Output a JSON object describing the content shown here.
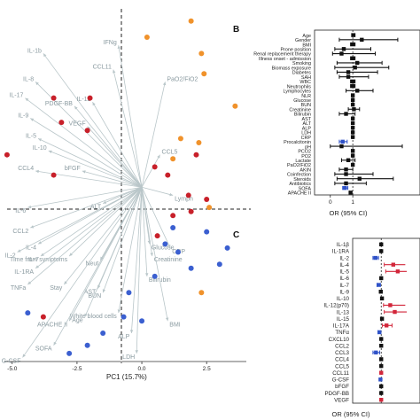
{
  "panel_letters": {
    "b": "B",
    "c": "C"
  },
  "chart_data": [
    {
      "type": "scatter",
      "subtype": "pca-biplot",
      "xlabel": "PC1 (15.7%)",
      "xticks": [
        "-5.0",
        "-2.5",
        "0.0",
        "2.5"
      ],
      "xtick_values": [
        -5.0,
        -2.5,
        0.0,
        2.5
      ],
      "xlim": [
        -5.3,
        4.1
      ],
      "ylim": [
        -4.3,
        4.4
      ],
      "colors": {
        "orange": "#f0922b",
        "red": "#c8202a",
        "blue": "#3b5fd0",
        "arrow": "#b9c6c9"
      },
      "points": [
        {
          "x": 0.2,
          "y": 3.7,
          "c": "orange"
        },
        {
          "x": 1.9,
          "y": 4.1,
          "c": "orange"
        },
        {
          "x": 2.3,
          "y": 3.3,
          "c": "orange"
        },
        {
          "x": 2.4,
          "y": 2.8,
          "c": "orange"
        },
        {
          "x": 3.6,
          "y": 2.0,
          "c": "orange"
        },
        {
          "x": 1.5,
          "y": 1.2,
          "c": "orange"
        },
        {
          "x": 2.2,
          "y": 1.1,
          "c": "orange"
        },
        {
          "x": 1.2,
          "y": 0.7,
          "c": "orange"
        },
        {
          "x": 2.6,
          "y": -0.5,
          "c": "orange"
        },
        {
          "x": 2.3,
          "y": -2.6,
          "c": "orange"
        },
        {
          "x": -3.4,
          "y": 2.2,
          "c": "red"
        },
        {
          "x": -2.0,
          "y": 2.2,
          "c": "red"
        },
        {
          "x": -3.1,
          "y": 1.6,
          "c": "red"
        },
        {
          "x": -2.1,
          "y": 1.4,
          "c": "red"
        },
        {
          "x": -5.2,
          "y": 0.8,
          "c": "red"
        },
        {
          "x": -3.4,
          "y": 0.3,
          "c": "red"
        },
        {
          "x": 2.1,
          "y": 0.8,
          "c": "red"
        },
        {
          "x": 0.5,
          "y": 0.5,
          "c": "red"
        },
        {
          "x": 1.0,
          "y": 0.3,
          "c": "red"
        },
        {
          "x": 1.8,
          "y": -0.2,
          "c": "red"
        },
        {
          "x": 2.5,
          "y": -0.3,
          "c": "red"
        },
        {
          "x": 1.9,
          "y": -0.6,
          "c": "red"
        },
        {
          "x": 1.2,
          "y": -0.7,
          "c": "red"
        },
        {
          "x": 0.6,
          "y": -1.2,
          "c": "red"
        },
        {
          "x": -3.8,
          "y": -3.2,
          "c": "red"
        },
        {
          "x": 1.2,
          "y": -1.0,
          "c": "blue"
        },
        {
          "x": 2.5,
          "y": -1.1,
          "c": "blue"
        },
        {
          "x": 1.4,
          "y": -1.6,
          "c": "blue"
        },
        {
          "x": 0.9,
          "y": -1.4,
          "c": "blue"
        },
        {
          "x": 3.0,
          "y": -1.9,
          "c": "blue"
        },
        {
          "x": 3.3,
          "y": -1.5,
          "c": "blue"
        },
        {
          "x": 1.9,
          "y": -2.0,
          "c": "blue"
        },
        {
          "x": -0.5,
          "y": -2.6,
          "c": "blue"
        },
        {
          "x": -0.7,
          "y": -3.2,
          "c": "blue"
        },
        {
          "x": -1.5,
          "y": -3.6,
          "c": "blue"
        },
        {
          "x": 0.5,
          "y": -2.2,
          "c": "blue"
        },
        {
          "x": 0.0,
          "y": -3.3,
          "c": "blue"
        },
        {
          "x": -4.4,
          "y": -3.1,
          "c": "blue"
        },
        {
          "x": -2.1,
          "y": -3.9,
          "c": "blue"
        },
        {
          "x": -2.8,
          "y": -4.1,
          "c": "blue"
        }
      ],
      "loadings": [
        {
          "label": "IFNg",
          "x": -0.9,
          "y": 3.5
        },
        {
          "label": "IL-1b",
          "x": -3.8,
          "y": 3.3
        },
        {
          "label": "CCL11",
          "x": -1.1,
          "y": 2.9
        },
        {
          "label": "IL-8",
          "x": -4.1,
          "y": 2.6
        },
        {
          "label": "PaO2/FiO2",
          "x": 0.9,
          "y": 2.6
        },
        {
          "label": "IL-17",
          "x": -4.5,
          "y": 2.2
        },
        {
          "label": "PDGF-BB",
          "x": -2.6,
          "y": 2.0
        },
        {
          "label": "IL-12",
          "x": -1.9,
          "y": 2.1
        },
        {
          "label": "VEGF",
          "x": -2.1,
          "y": 1.5
        },
        {
          "label": "IL-9",
          "x": -4.3,
          "y": 1.7
        },
        {
          "label": "IL-5",
          "x": -4.0,
          "y": 1.2
        },
        {
          "label": "IL-10",
          "x": -3.6,
          "y": 0.9
        },
        {
          "label": "CCL4",
          "x": -4.1,
          "y": 0.4
        },
        {
          "label": "bFGF",
          "x": -2.3,
          "y": 0.4
        },
        {
          "label": "CCL5",
          "x": 0.7,
          "y": 0.8
        },
        {
          "label": "Lymph",
          "x": 1.2,
          "y": -0.2
        },
        {
          "label": "IL-6",
          "x": -4.4,
          "y": -0.5
        },
        {
          "label": "ALT",
          "x": -1.5,
          "y": -0.4
        },
        {
          "label": "CCL2",
          "x": -4.3,
          "y": -1.0
        },
        {
          "label": "IL-4",
          "x": -4.0,
          "y": -1.4
        },
        {
          "label": "IL-2",
          "x": -4.8,
          "y": -1.6
        },
        {
          "label": "IL-7",
          "x": -3.9,
          "y": -1.7
        },
        {
          "label": "Time from symptoms",
          "x": -2.8,
          "y": -1.7
        },
        {
          "label": "IL-1RA",
          "x": -4.1,
          "y": -2.0
        },
        {
          "label": "Glucose",
          "x": 0.3,
          "y": -1.4
        },
        {
          "label": "CRP",
          "x": 1.1,
          "y": -1.5
        },
        {
          "label": "Creatinine",
          "x": 0.4,
          "y": -1.7
        },
        {
          "label": "TNFa",
          "x": -4.4,
          "y": -2.4
        },
        {
          "label": "Stay",
          "x": -3.0,
          "y": -2.4
        },
        {
          "label": "Neut",
          "x": -1.6,
          "y": -1.8
        },
        {
          "label": "Bilirubin",
          "x": 0.2,
          "y": -2.2
        },
        {
          "label": "AST",
          "x": -1.7,
          "y": -2.5
        },
        {
          "label": "BUN",
          "x": -1.5,
          "y": -2.6
        },
        {
          "label": "White blood cells",
          "x": -0.9,
          "y": -3.1
        },
        {
          "label": "Age",
          "x": -2.2,
          "y": -3.2
        },
        {
          "label": "APACHE II",
          "x": -2.8,
          "y": -3.3
        },
        {
          "label": "BMI",
          "x": 1.0,
          "y": -3.3
        },
        {
          "label": "ALP",
          "x": -0.4,
          "y": -3.6
        },
        {
          "label": "SOFA",
          "x": -3.4,
          "y": -3.9
        },
        {
          "label": "G-CSF",
          "x": -4.6,
          "y": -4.2
        },
        {
          "label": "LDH",
          "x": -0.2,
          "y": -4.1
        }
      ]
    },
    {
      "type": "forest",
      "panel": "B",
      "xlabel": "OR (95% CI)",
      "xticks": [
        "0",
        "1"
      ],
      "xtick_values": [
        0,
        1
      ],
      "xlim": [
        -0.7,
        3.2
      ],
      "reference": 1,
      "rows": [
        {
          "label": "Age",
          "or": 1.02,
          "lo": 0.95,
          "hi": 1.1,
          "c": "black"
        },
        {
          "label": "Gender",
          "or": 1.4,
          "lo": 0.4,
          "hi": 3.0,
          "c": "black"
        },
        {
          "label": "BMI",
          "or": 1.0,
          "lo": 0.9,
          "hi": 1.1,
          "c": "black"
        },
        {
          "label": "Prone position",
          "or": 0.6,
          "lo": 0.2,
          "hi": 1.8,
          "c": "black"
        },
        {
          "label": "Renal replacement therapy",
          "or": 0.5,
          "lo": 0.1,
          "hi": 2.0,
          "c": "black"
        },
        {
          "label": "Illness onset - admission",
          "or": 1.0,
          "lo": 0.9,
          "hi": 1.1,
          "c": "black"
        },
        {
          "label": "Smoking",
          "or": 1.2,
          "lo": 0.3,
          "hi": 2.3,
          "c": "black"
        },
        {
          "label": "Biomass exposure",
          "or": 1.1,
          "lo": 0.2,
          "hi": 2.6,
          "c": "black"
        },
        {
          "label": "Diabetes",
          "or": 0.8,
          "lo": 0.3,
          "hi": 2.1,
          "c": "black"
        },
        {
          "label": "SAH",
          "or": 0.8,
          "lo": 0.4,
          "hi": 1.7,
          "c": "black"
        },
        {
          "label": "WBC",
          "or": 1.0,
          "lo": 0.9,
          "hi": 1.1,
          "c": "black"
        },
        {
          "label": "Neutrophils",
          "or": 1.0,
          "lo": 0.9,
          "hi": 1.1,
          "c": "black"
        },
        {
          "label": "Lymphocytes",
          "or": 1.2,
          "lo": 0.7,
          "hi": 1.9,
          "c": "black"
        },
        {
          "label": "NLR",
          "or": 1.0,
          "lo": 0.95,
          "hi": 1.05,
          "c": "black"
        },
        {
          "label": "Glucose",
          "or": 1.0,
          "lo": 0.98,
          "hi": 1.02,
          "c": "black"
        },
        {
          "label": "BUN",
          "or": 1.0,
          "lo": 0.97,
          "hi": 1.03,
          "c": "black"
        },
        {
          "label": "Creatinine",
          "or": 1.05,
          "lo": 0.8,
          "hi": 1.3,
          "c": "black"
        },
        {
          "label": "Bilirubin",
          "or": 0.7,
          "lo": 0.4,
          "hi": 1.1,
          "c": "black"
        },
        {
          "label": "AST",
          "or": 1.0,
          "lo": 0.99,
          "hi": 1.01,
          "c": "black"
        },
        {
          "label": "ALT",
          "or": 1.0,
          "lo": 0.99,
          "hi": 1.01,
          "c": "black"
        },
        {
          "label": "ALP",
          "or": 1.0,
          "lo": 0.99,
          "hi": 1.01,
          "c": "black"
        },
        {
          "label": "LDH",
          "or": 1.0,
          "lo": 0.99,
          "hi": 1.01,
          "c": "black"
        },
        {
          "label": "CRP",
          "or": 1.0,
          "lo": 0.99,
          "hi": 1.01,
          "c": "black"
        },
        {
          "label": "Procalcitonin",
          "or": 0.55,
          "lo": 0.4,
          "hi": 0.75,
          "c": "blue"
        },
        {
          "label": "pH",
          "or": 0.5,
          "lo": 0.0,
          "hi": 3.2,
          "c": "black"
        },
        {
          "label": "PCO2",
          "or": 1.0,
          "lo": 0.95,
          "hi": 1.05,
          "c": "black"
        },
        {
          "label": "PO2",
          "or": 1.0,
          "lo": 0.98,
          "hi": 1.02,
          "c": "black"
        },
        {
          "label": "Lactate",
          "or": 0.8,
          "lo": 0.5,
          "hi": 1.1,
          "c": "black"
        },
        {
          "label": "PaO2/FiO2",
          "or": 1.0,
          "lo": 0.99,
          "hi": 1.01,
          "c": "black"
        },
        {
          "label": "AKIN",
          "or": 0.7,
          "lo": 0.4,
          "hi": 1.0,
          "c": "black"
        },
        {
          "label": "Coinfection",
          "or": 0.7,
          "lo": 0.2,
          "hi": 1.9,
          "c": "black"
        },
        {
          "label": "Steroids",
          "or": 1.3,
          "lo": 0.3,
          "hi": 2.8,
          "c": "black"
        },
        {
          "label": "Antibiotics",
          "or": 0.7,
          "lo": 0.2,
          "hi": 1.6,
          "c": "black"
        },
        {
          "label": "SOFA",
          "or": 0.65,
          "lo": 0.55,
          "hi": 0.78,
          "c": "blue"
        },
        {
          "label": "APACHE II",
          "or": 0.9,
          "lo": 0.85,
          "hi": 0.96,
          "c": "black"
        }
      ]
    },
    {
      "type": "forest",
      "panel": "C",
      "xlabel": "OR (95% CI)",
      "xlim": [
        -0.9,
        2.4
      ],
      "reference": 1,
      "rows": [
        {
          "label": "IL-1β",
          "or": 1.0,
          "lo": 0.95,
          "hi": 1.05,
          "c": "black"
        },
        {
          "label": "IL-1RA",
          "or": 1.0,
          "lo": 0.97,
          "hi": 1.03,
          "c": "black"
        },
        {
          "label": "IL-2",
          "or": 0.62,
          "lo": 0.45,
          "hi": 0.82,
          "c": "blue"
        },
        {
          "label": "IL-4",
          "or": 1.8,
          "lo": 1.2,
          "hi": 2.6,
          "c": "red"
        },
        {
          "label": "IL-5",
          "or": 2.1,
          "lo": 1.3,
          "hi": 2.7,
          "c": "red"
        },
        {
          "label": "IL-6",
          "or": 1.0,
          "lo": 0.97,
          "hi": 1.03,
          "c": "black"
        },
        {
          "label": "IL-7",
          "or": 0.82,
          "lo": 0.72,
          "hi": 0.95,
          "c": "blue"
        },
        {
          "label": "IL-9",
          "or": 0.97,
          "lo": 0.9,
          "hi": 1.06,
          "c": "black"
        },
        {
          "label": "IL-10",
          "or": 1.05,
          "lo": 0.98,
          "hi": 1.12,
          "c": "black"
        },
        {
          "label": "IL-12(p70)",
          "or": 1.6,
          "lo": 1.15,
          "hi": 2.6,
          "c": "red"
        },
        {
          "label": "IL-13",
          "or": 1.9,
          "lo": 1.2,
          "hi": 2.7,
          "c": "red"
        },
        {
          "label": "IL-15",
          "or": 1.05,
          "lo": 0.97,
          "hi": 1.14,
          "c": "black"
        },
        {
          "label": "IL-17A",
          "or": 1.35,
          "lo": 1.08,
          "hi": 1.72,
          "c": "red"
        },
        {
          "label": "TNFα",
          "or": 0.88,
          "lo": 0.78,
          "hi": 0.98,
          "c": "blue"
        },
        {
          "label": "CXCL10",
          "or": 1.0,
          "lo": 0.98,
          "hi": 1.02,
          "c": "black"
        },
        {
          "label": "CCL2",
          "or": 1.0,
          "lo": 0.98,
          "hi": 1.02,
          "c": "black"
        },
        {
          "label": "CCL3",
          "or": 0.65,
          "lo": 0.45,
          "hi": 0.9,
          "c": "blue"
        },
        {
          "label": "CCL4",
          "or": 1.0,
          "lo": 0.95,
          "hi": 1.05,
          "c": "black"
        },
        {
          "label": "CCL5",
          "or": 1.0,
          "lo": 0.98,
          "hi": 1.02,
          "c": "black"
        },
        {
          "label": "CCL11",
          "or": 1.0,
          "lo": 0.98,
          "hi": 1.02,
          "c": "red"
        },
        {
          "label": "G-CSF",
          "or": 0.95,
          "lo": 0.88,
          "hi": 1.0,
          "c": "blue"
        },
        {
          "label": "bFGF",
          "or": 1.0,
          "lo": 0.97,
          "hi": 1.03,
          "c": "black"
        },
        {
          "label": "PDGF-BB",
          "or": 1.0,
          "lo": 0.98,
          "hi": 1.02,
          "c": "black"
        },
        {
          "label": "VEGF",
          "or": 1.0,
          "lo": 0.98,
          "hi": 1.02,
          "c": "red"
        }
      ]
    }
  ]
}
